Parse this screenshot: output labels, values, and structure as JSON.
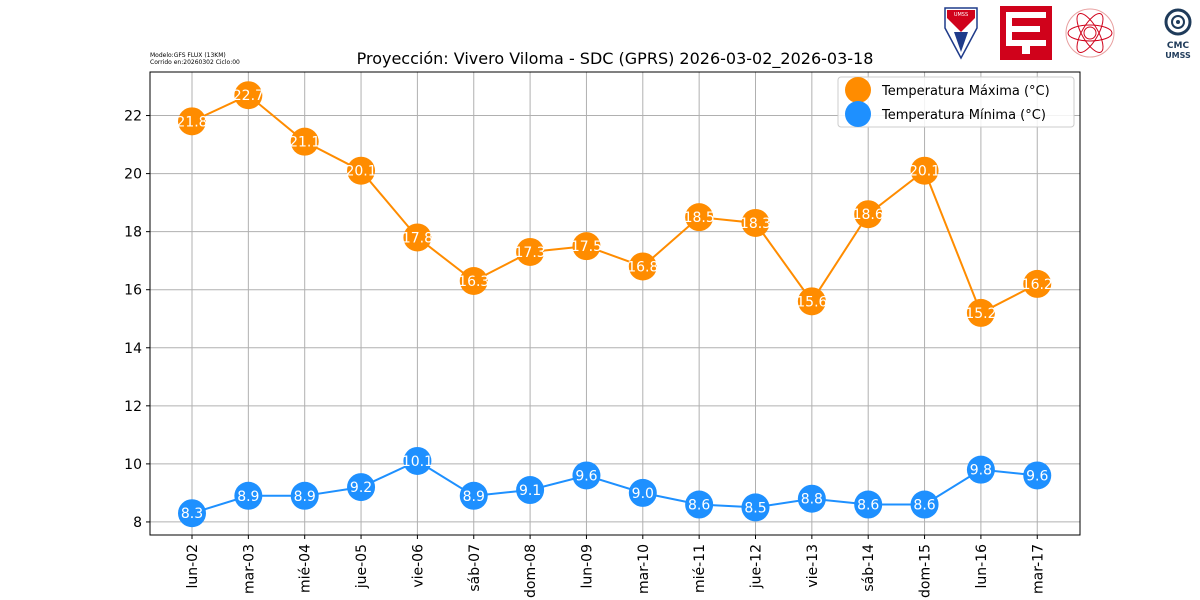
{
  "header": {
    "model_line1": "Modelo:GFS FLUX (13KM)",
    "model_line2": "Corrido en:20260302 Ciclo:00"
  },
  "logos": {
    "umss_shield_text": "UMSS",
    "cmc_line1": "CMC",
    "cmc_line2": "UMSS"
  },
  "colors": {
    "max_series": "#ff8c00",
    "min_series": "#1e90ff",
    "grid": "#b0b0b0",
    "umss_red": "#d0021b",
    "cmc_blue": "#1f3b5a"
  },
  "chart_data": {
    "type": "line",
    "title": "Proyección: Vivero Viloma - SDC (GPRS) 2026-03-02_2026-03-18",
    "xlabel": "",
    "ylabel": "",
    "categories": [
      "lun-02",
      "mar-03",
      "mié-04",
      "jue-05",
      "vie-06",
      "sáb-07",
      "dom-08",
      "lun-09",
      "mar-10",
      "mié-11",
      "jue-12",
      "vie-13",
      "sáb-14",
      "dom-15",
      "lun-16",
      "mar-17"
    ],
    "ylim": [
      7.55,
      23.5
    ],
    "yticks": [
      8,
      10,
      12,
      14,
      16,
      18,
      20,
      22
    ],
    "grid": true,
    "legend_position": "top-right",
    "series": [
      {
        "name": "Temperatura Máxima  (°C)",
        "color": "#ff8c00",
        "values": [
          21.8,
          22.7,
          21.1,
          20.1,
          17.8,
          16.3,
          17.3,
          17.5,
          16.8,
          18.5,
          18.3,
          15.6,
          18.6,
          20.1,
          15.2,
          16.2
        ]
      },
      {
        "name": "Temperatura Mínima  (°C)",
        "color": "#1e90ff",
        "values": [
          8.3,
          8.9,
          8.9,
          9.2,
          10.1,
          8.9,
          9.1,
          9.6,
          9.0,
          8.6,
          8.5,
          8.8,
          8.6,
          8.6,
          9.8,
          9.6
        ]
      }
    ]
  }
}
